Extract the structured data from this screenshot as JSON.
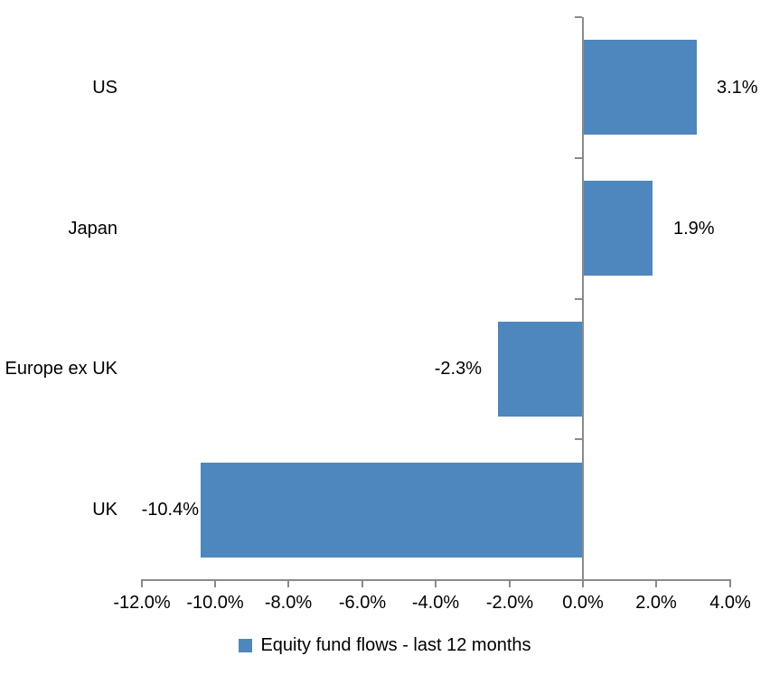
{
  "chart_data": {
    "type": "bar",
    "orientation": "horizontal",
    "title": "",
    "xlabel": "",
    "ylabel": "",
    "categories": [
      "US",
      "Japan",
      "Europe ex UK",
      "UK"
    ],
    "series": [
      {
        "name": "Equity fund flows - last 12 months",
        "values": [
          3.1,
          1.9,
          -2.3,
          -10.4
        ],
        "labels": [
          "3.1%",
          "1.9%",
          "-2.3%",
          "-10.4%"
        ]
      }
    ],
    "xlim": [
      -12,
      4
    ],
    "x_ticks": [
      -12,
      -10,
      -8,
      -6,
      -4,
      -2,
      0,
      2,
      4
    ],
    "x_tick_labels": [
      "-12.0%",
      "-10.0%",
      "-8.0%",
      "-6.0%",
      "-4.0%",
      "-2.0%",
      "0.0%",
      "2.0%",
      "4.0%"
    ],
    "grid": false,
    "legend": {
      "position": "bottom",
      "label": "Equity fund flows - last 12 months"
    },
    "colors": {
      "bar": "#4D87BE",
      "axis": "#8A8A8A",
      "text": "#000000",
      "background": "#FFFFFF"
    }
  }
}
